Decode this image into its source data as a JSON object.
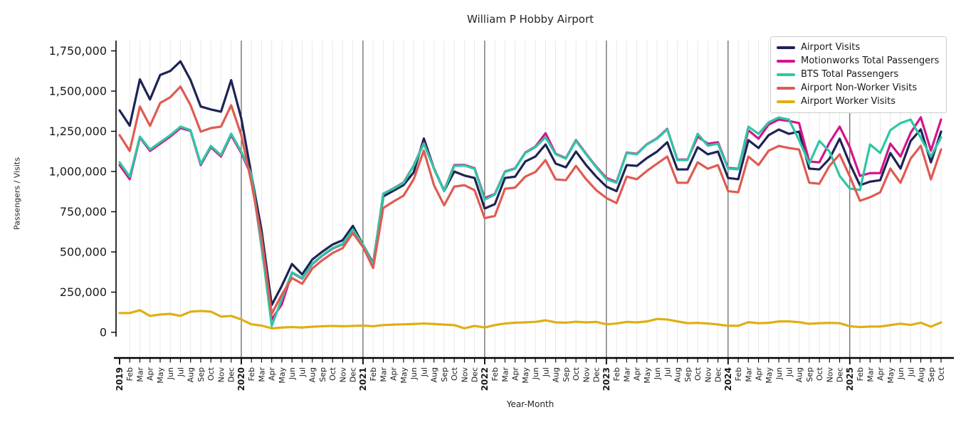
{
  "title": "William P Hobby Airport",
  "axes": {
    "x_label": "Year-Month",
    "y_label": "Passengers / Visits"
  },
  "legend": {
    "position": "top-right"
  },
  "chart_data": {
    "type": "line",
    "title": "William P Hobby Airport",
    "xlabel": "Year-Month",
    "ylabel": "Passengers / Visits",
    "grid": "vertical monthly gridlines, dark line at each January",
    "legend_position": "upper right",
    "ylim": [
      0,
      1814000
    ],
    "y_tick_values": [
      0,
      250000,
      500000,
      750000,
      1000000,
      1250000,
      1500000,
      1750000
    ],
    "y_tick_labels": [
      "0",
      "250,000",
      "500,000",
      "750,000",
      "1,000,000",
      "1,250,000",
      "1,500,000",
      "1,750,000"
    ],
    "x_tick_labels": [
      "2019",
      "Feb",
      "Mar",
      "Apr",
      "May",
      "Jun",
      "Jul",
      "Aug",
      "Sep",
      "Oct",
      "Nov",
      "Dec",
      "2020",
      "Feb",
      "Mar",
      "Apr",
      "May",
      "Jun",
      "Jul",
      "Aug",
      "Sep",
      "Oct",
      "Nov",
      "Dec",
      "2021",
      "Feb",
      "Mar",
      "Apr",
      "May",
      "Jun",
      "Jul",
      "Aug",
      "Sep",
      "Oct",
      "Nov",
      "Dec",
      "2022",
      "Feb",
      "Mar",
      "Apr",
      "May",
      "Jun",
      "Jul",
      "Aug",
      "Sep",
      "Oct",
      "Nov",
      "Dec",
      "2023",
      "Feb",
      "Mar",
      "Apr",
      "May",
      "Jun",
      "Jul",
      "Aug",
      "Sep",
      "Oct",
      "Nov",
      "Dec",
      "2024",
      "Feb",
      "Mar",
      "Apr",
      "May",
      "Jun",
      "Jul",
      "Aug",
      "Sep",
      "Oct",
      "Nov",
      "Dec",
      "2025",
      "Feb",
      "Mar",
      "Apr",
      "May",
      "Jun",
      "Jul",
      "Aug",
      "Sep",
      "Oct"
    ],
    "series": [
      {
        "name": "Airport Visits",
        "color": "#1e2355",
        "values": [
          1380000,
          1285000,
          1573000,
          1448000,
          1600000,
          1625000,
          1685000,
          1568000,
          1404000,
          1386000,
          1372000,
          1568000,
          1330000,
          980000,
          634000,
          170000,
          290000,
          425000,
          360000,
          453000,
          502000,
          546000,
          573000,
          662000,
          545000,
          430000,
          845000,
          880000,
          916000,
          995000,
          1205000,
          1018000,
          879000,
          1000000,
          975000,
          960000,
          770000,
          797000,
          960000,
          968000,
          1062000,
          1093000,
          1168000,
          1049000,
          1026000,
          1124000,
          1040000,
          968000,
          906000,
          878000,
          1040000,
          1035000,
          1084000,
          1124000,
          1182000,
          1013000,
          1013000,
          1151000,
          1107000,
          1124000,
          960000,
          952000,
          1195000,
          1146000,
          1226000,
          1261000,
          1234000,
          1248000,
          1018000,
          1013000,
          1080000,
          1204000,
          1049000,
          915000,
          937000,
          946000,
          1115000,
          1018000,
          1190000,
          1262000,
          1057000,
          1248000
        ]
      },
      {
        "name": "Motionworks Total Passengers",
        "color": "#d4148c",
        "values": [
          1040000,
          952000,
          1212000,
          1128000,
          1173000,
          1217000,
          1270000,
          1253000,
          1040000,
          1151000,
          1093000,
          1226000,
          1115000,
          973000,
          529000,
          80000,
          175000,
          370000,
          335000,
          424000,
          477000,
          521000,
          548000,
          637000,
          540000,
          425000,
          862000,
          895000,
          932000,
          1037000,
          1178000,
          1021000,
          882000,
          1040000,
          1041000,
          1021000,
          835000,
          860000,
          1000000,
          1020000,
          1118000,
          1155000,
          1238000,
          1110000,
          1083000,
          1195000,
          1110000,
          1030000,
          960000,
          935000,
          1118000,
          1110000,
          1170000,
          1207000,
          1265000,
          1074000,
          1074000,
          1217000,
          1173000,
          1182000,
          1022000,
          1017000,
          1257000,
          1204000,
          1292000,
          1323000,
          1314000,
          1301000,
          1062000,
          1057000,
          1180000,
          1279000,
          1151000,
          973000,
          990000,
          990000,
          1173000,
          1093000,
          1240000,
          1337000,
          1130000,
          1323000
        ]
      },
      {
        "name": "BTS Total Passengers",
        "color": "#2ec7a5",
        "values": [
          1057000,
          968000,
          1217000,
          1137000,
          1182000,
          1226000,
          1279000,
          1257000,
          1048000,
          1159000,
          1102000,
          1235000,
          1124000,
          982000,
          537000,
          40000,
          210000,
          373000,
          338000,
          427000,
          480000,
          524000,
          551000,
          640000,
          545000,
          420000,
          862000,
          893000,
          929000,
          1035000,
          1174000,
          1018000,
          879000,
          1035000,
          1037000,
          1017000,
          825000,
          857000,
          997000,
          1017000,
          1115000,
          1151000,
          1213000,
          1107000,
          1080000,
          1190000,
          1107000,
          1026000,
          952000,
          930000,
          1115000,
          1107000,
          1168000,
          1204000,
          1262000,
          1071000,
          1071000,
          1235000,
          1160000,
          1173000,
          1018000,
          1013000,
          1279000,
          1234000,
          1306000,
          1336000,
          1323000,
          1195000,
          1049000,
          1190000,
          1124000,
          973000,
          894000,
          885000,
          1168000,
          1115000,
          1257000,
          1301000,
          1323000,
          1210000,
          1093000,
          1213000
        ]
      },
      {
        "name": "Airport Non-Worker Visits",
        "color": "#df5b51",
        "values": [
          1226000,
          1128000,
          1404000,
          1284000,
          1426000,
          1462000,
          1528000,
          1412000,
          1248000,
          1270000,
          1279000,
          1412000,
          1226000,
          930000,
          590000,
          115000,
          235000,
          338000,
          302000,
          397000,
          449000,
          493000,
          524000,
          618000,
          530000,
          400000,
          773000,
          813000,
          850000,
          952000,
          1130000,
          915000,
          790000,
          906000,
          915000,
          884000,
          710000,
          724000,
          893000,
          900000,
          968000,
          997000,
          1071000,
          951000,
          946000,
          1035000,
          952000,
          884000,
          835000,
          804000,
          968000,
          952000,
          1004000,
          1049000,
          1093000,
          930000,
          930000,
          1057000,
          1017000,
          1040000,
          878000,
          871000,
          1093000,
          1040000,
          1129000,
          1159000,
          1146000,
          1137000,
          930000,
          924000,
          1035000,
          1107000,
          970000,
          818000,
          840000,
          871000,
          1018000,
          930000,
          1080000,
          1160000,
          951000,
          1137000
        ]
      },
      {
        "name": "Airport Worker Visits",
        "color": "#dfaf13",
        "values": [
          120000,
          120000,
          138000,
          102000,
          111000,
          115000,
          102000,
          129000,
          133000,
          129000,
          98000,
          102000,
          80000,
          50000,
          42000,
          25000,
          30000,
          33000,
          30000,
          35000,
          38000,
          40000,
          38000,
          40000,
          42000,
          38000,
          45000,
          48000,
          50000,
          52000,
          55000,
          52000,
          48000,
          45000,
          25000,
          40000,
          30000,
          45000,
          55000,
          60000,
          62000,
          65000,
          75000,
          62000,
          60000,
          66000,
          62000,
          65000,
          50000,
          55000,
          65000,
          62000,
          68000,
          83000,
          80000,
          68000,
          57000,
          59000,
          55000,
          49000,
          41000,
          41000,
          63000,
          57000,
          59000,
          68000,
          68000,
          63000,
          53000,
          57000,
          59000,
          57000,
          38000,
          33000,
          36000,
          36000,
          45000,
          54000,
          46000,
          60000,
          35000,
          62000
        ]
      }
    ]
  }
}
